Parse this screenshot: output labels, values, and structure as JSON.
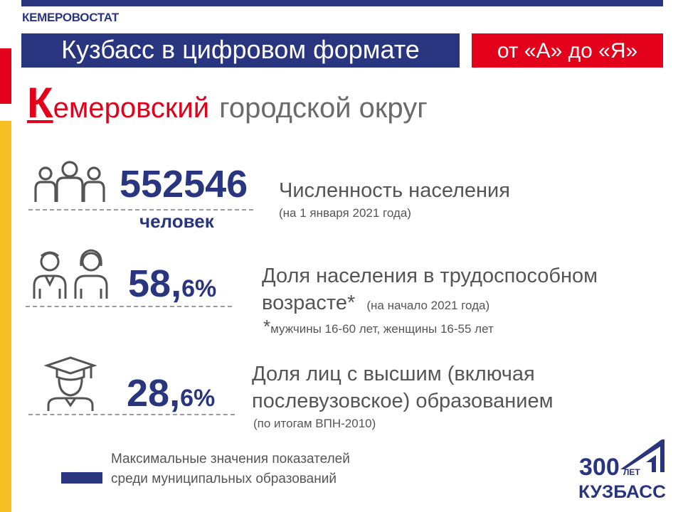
{
  "header": {
    "brand": "КЕМЕРОВОСТАТ",
    "title": "Кузбасс в цифровом формате",
    "subtitle": "от «А» до «Я»"
  },
  "region": {
    "first_letter": "К",
    "name_rest": "емеровский",
    "suffix": "городской округ"
  },
  "stats": [
    {
      "icon": "people-group-icon",
      "value": "552546",
      "unit": "человек",
      "label": "Численность населения",
      "note": "(на 1 января 2021 года)"
    },
    {
      "icon": "man-woman-icon",
      "value_int": "58,",
      "value_frac": "6%",
      "label_line1": "Доля населения в трудоспособном",
      "label_line2": "возрасте*",
      "note": "(на начало 2021 года)",
      "footnote_mark": "*",
      "footnote": "мужчины  16-60 лет, женщины  16-55 лет"
    },
    {
      "icon": "graduate-icon",
      "value_int": "28,",
      "value_frac": "6%",
      "label_line1": "Доля лиц с высшим (включая",
      "label_line2": "послевузовское) образованием",
      "note": "(по итогам ВПН-2010)"
    }
  ],
  "legend": {
    "line1": "Максимальные значения показателей",
    "line2": "среди муниципальных образований"
  },
  "logo": {
    "number": "300",
    "small": "ЛЕТ",
    "name": "КУЗБАСС"
  },
  "colors": {
    "navy": "#2a3580",
    "red": "#e2001a",
    "yellow": "#f6c025",
    "gray": "#555555"
  }
}
